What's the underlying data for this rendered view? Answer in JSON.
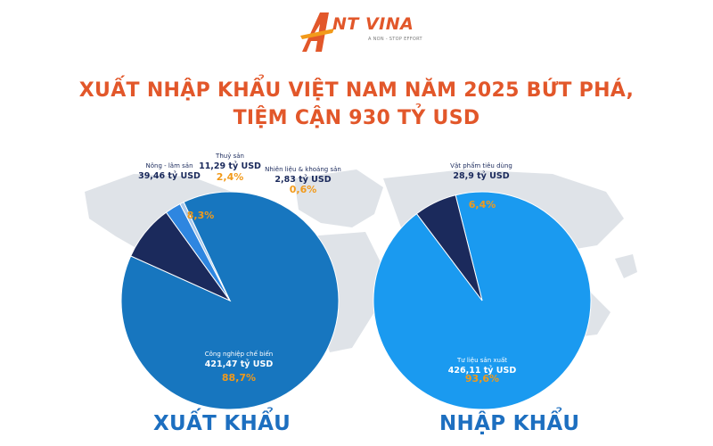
{
  "brand": {
    "name": "NT VINA",
    "tagline": "A NON - STOP EFFORT"
  },
  "title": {
    "line1": "XUẤT NHẬP KHẨU VIỆT NAM NĂM 2025 BỨT PHÁ,",
    "line2": "TIỆM CẬN 930 TỶ USD"
  },
  "colors": {
    "accent": "#e2572a",
    "pct": "#f29a1a",
    "label": "#1b2a5c",
    "map": "#dfe3e8"
  },
  "chart_data": [
    {
      "type": "pie",
      "title": "XUẤT KHẨU",
      "slices": [
        {
          "label": "Công nghiệp chế biến",
          "amount": "421,47 tỷ USD",
          "value": 421.47,
          "pct": "88,7%",
          "color": "#1776bf"
        },
        {
          "label": "Nông - lâm sản",
          "amount": "39,46 tỷ USD",
          "value": 39.46,
          "pct": "8,3%",
          "color": "#1b2a5c"
        },
        {
          "label": "Thuỷ sản",
          "amount": "11,29 tỷ USD",
          "value": 11.29,
          "pct": "2,4%",
          "color": "#2e86e0"
        },
        {
          "label": "Nhiên liệu & khoáng sản",
          "amount": "2,83 tỷ USD",
          "value": 2.83,
          "pct": "0,6%",
          "color": "#a9c8ea"
        }
      ]
    },
    {
      "type": "pie",
      "title": "NHẬP KHẨU",
      "slices": [
        {
          "label": "Tư liệu sản xuất",
          "amount": "426,11 tỷ USD",
          "value": 426.11,
          "pct": "93,6%",
          "color": "#1a9af0"
        },
        {
          "label": "Vật phẩm tiêu dùng",
          "amount": "28,9 tỷ USD",
          "value": 28.9,
          "pct": "6,4%",
          "color": "#1b2a5c"
        }
      ]
    }
  ]
}
